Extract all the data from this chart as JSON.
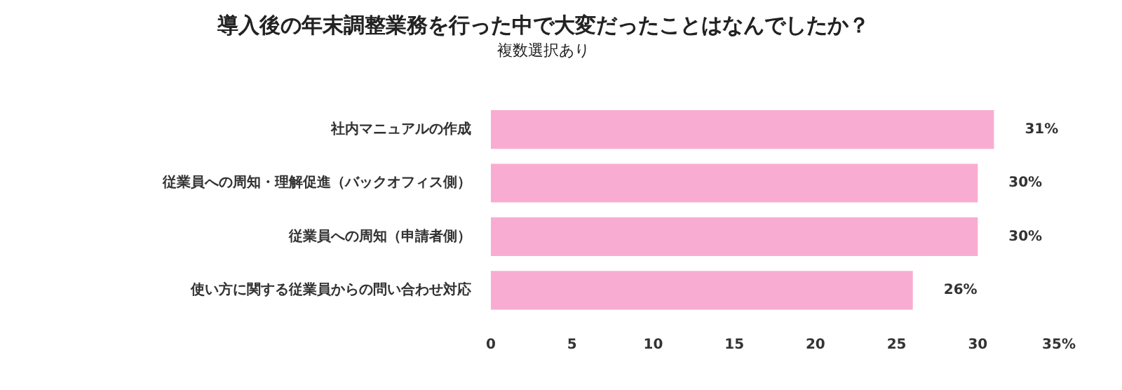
{
  "chart_data": {
    "type": "bar",
    "orientation": "horizontal",
    "title": "導入後の年末調整業務を行った中で大変だったことはなんでしたか？",
    "subtitle": "複数選択あり",
    "categories": [
      "社内マニュアルの作成",
      "従業員への周知・理解促進（バックオフィス側）",
      "従業員への周知（申請者側）",
      "使い方に関する従業員からの問い合わせ対応"
    ],
    "values": [
      31,
      30,
      30,
      26
    ],
    "value_labels": [
      "31%",
      "30%",
      "30%",
      "26%"
    ],
    "color": "#f9acd2",
    "xlim": [
      0,
      35
    ],
    "xticks": [
      0,
      5,
      10,
      15,
      20,
      25,
      30,
      {
        "value": 35,
        "label": "35%"
      }
    ],
    "grid": false
  }
}
